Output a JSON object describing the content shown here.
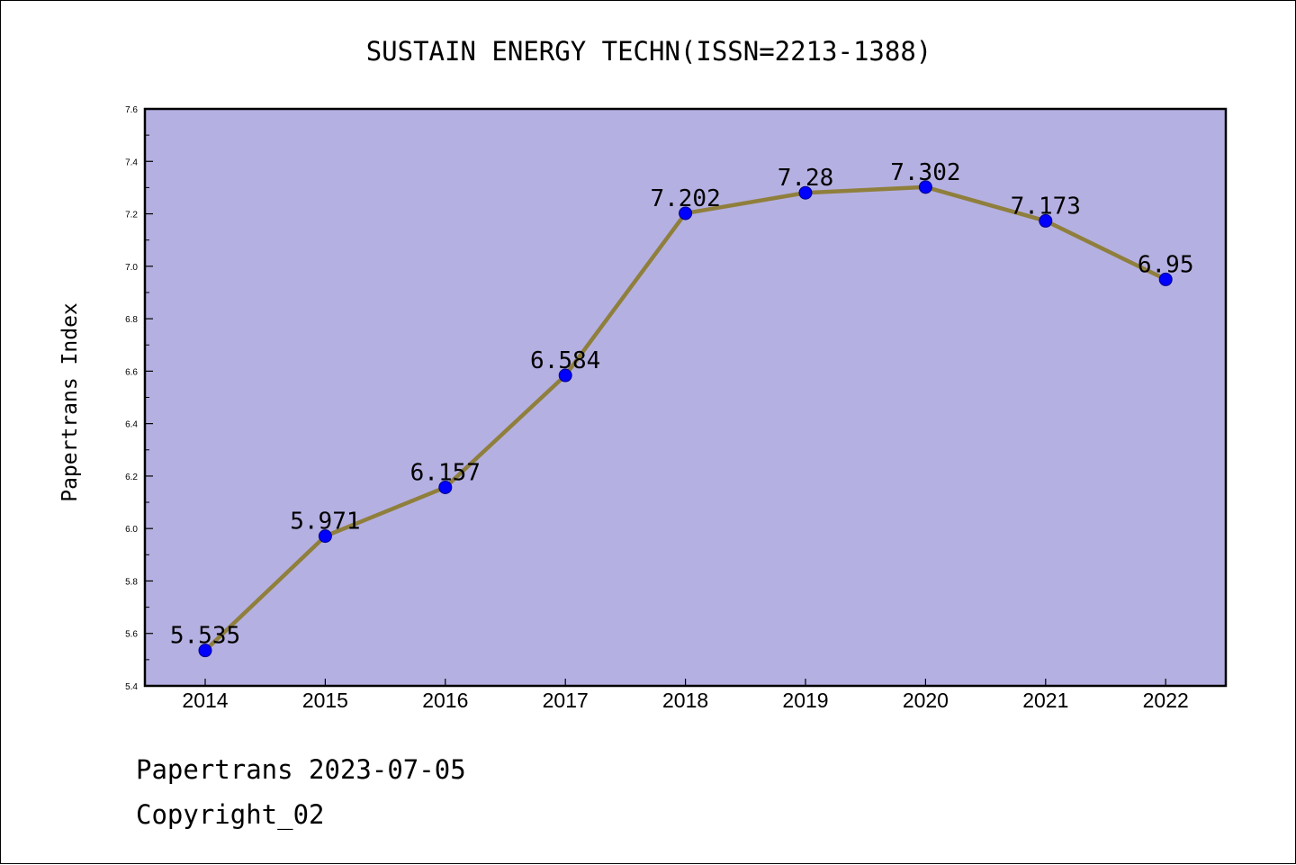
{
  "chart_data": {
    "type": "line",
    "title": "SUSTAIN ENERGY TECHN(ISSN=2213-1388)",
    "xlabel": "",
    "ylabel": "Papertrans Index",
    "categories": [
      "2014",
      "2015",
      "2016",
      "2017",
      "2018",
      "2019",
      "2020",
      "2021",
      "2022"
    ],
    "series": [
      {
        "values": [
          5.535,
          5.971,
          6.157,
          6.584,
          7.202,
          7.28,
          7.302,
          7.173,
          6.95
        ],
        "labels": [
          "5.535",
          "5.971",
          "6.157",
          "6.584",
          "7.202",
          "7.28",
          "7.302",
          "7.173",
          "6.95"
        ]
      }
    ],
    "ylim": [
      5.4,
      7.6
    ],
    "yticks": [
      "5.4",
      "5.6",
      "5.8",
      "6.0",
      "6.2",
      "6.4",
      "6.6",
      "6.8",
      "7.0",
      "7.2",
      "7.4",
      "7.6"
    ],
    "grid": false,
    "legend": "none"
  },
  "footer": {
    "line1": "Papertrans 2023-07-05",
    "line2": "Copyright_02"
  },
  "colors": {
    "plot_background": "#b5b0e2",
    "line": "#8f7f3c",
    "marker": "#0000ff",
    "axis": "#000000"
  }
}
